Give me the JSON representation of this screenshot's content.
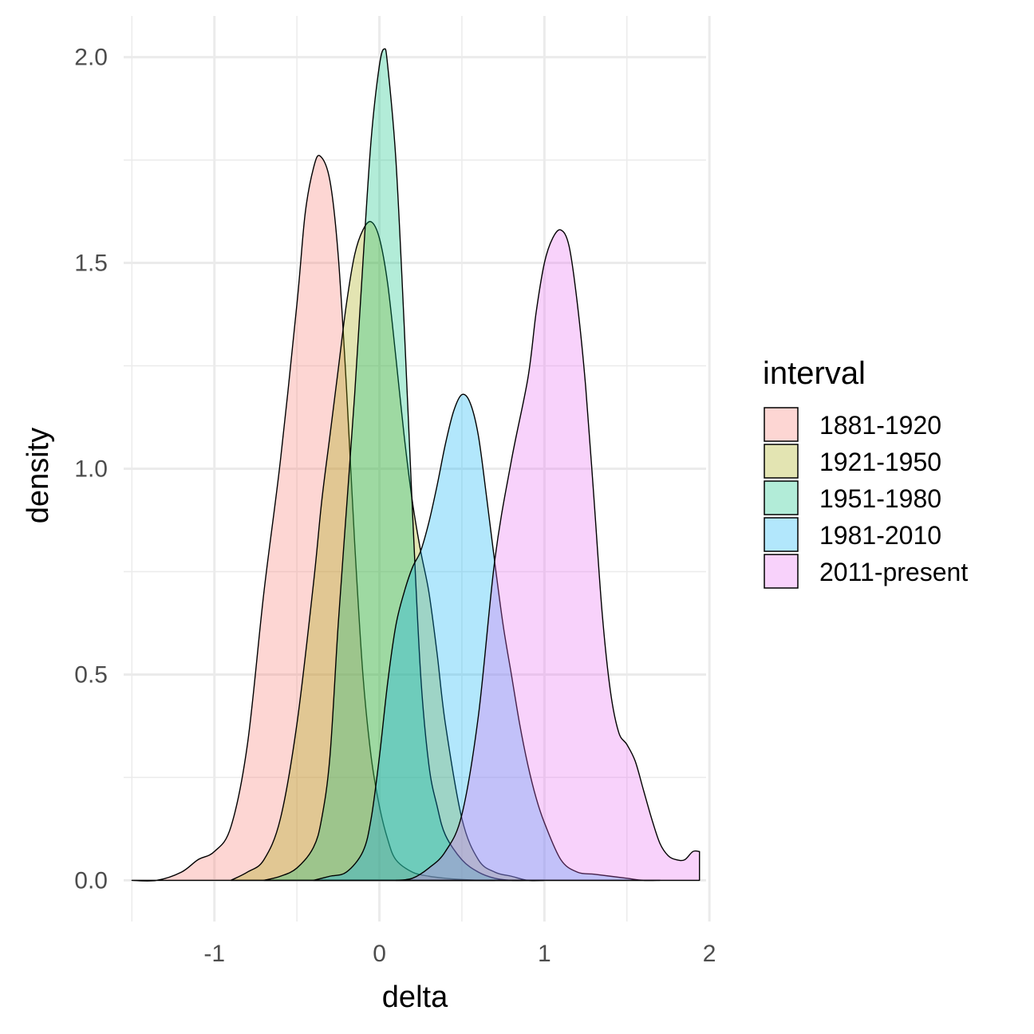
{
  "chart_data": {
    "type": "area",
    "title": "",
    "xlabel": "delta",
    "ylabel": "density",
    "xlim": [
      -1.55,
      1.98
    ],
    "ylim": [
      -0.1,
      2.1
    ],
    "x_ticks": [
      -1,
      0,
      1,
      2
    ],
    "x_tick_labels": [
      "-1",
      "0",
      "1",
      "2"
    ],
    "y_ticks": [
      0.0,
      0.5,
      1.0,
      1.5,
      2.0
    ],
    "y_tick_labels": [
      "0.0",
      "0.5",
      "1.0",
      "1.5",
      "2.0"
    ],
    "grid": true,
    "legend": {
      "title": "interval",
      "position": "right"
    },
    "series": [
      {
        "name": "1881-1920",
        "color": "#F8766D",
        "x": [
          -1.5,
          -1.35,
          -1.2,
          -1.1,
          -1.0,
          -0.9,
          -0.8,
          -0.7,
          -0.6,
          -0.5,
          -0.45,
          -0.4,
          -0.36,
          -0.3,
          -0.25,
          -0.2,
          -0.15,
          -0.1,
          -0.05,
          0.0,
          0.05,
          0.1,
          0.2,
          0.3,
          0.4,
          0.5,
          0.6,
          0.7
        ],
        "y": [
          0.0,
          0.0,
          0.02,
          0.05,
          0.07,
          0.13,
          0.33,
          0.7,
          1.02,
          1.4,
          1.62,
          1.73,
          1.76,
          1.7,
          1.52,
          1.2,
          0.82,
          0.5,
          0.3,
          0.18,
          0.1,
          0.05,
          0.02,
          0.01,
          0.005,
          0.002,
          0.0,
          0.0
        ]
      },
      {
        "name": "1921-1950",
        "color": "#A3A500",
        "x": [
          -0.9,
          -0.8,
          -0.7,
          -0.6,
          -0.5,
          -0.4,
          -0.35,
          -0.3,
          -0.25,
          -0.2,
          -0.15,
          -0.1,
          -0.05,
          0.0,
          0.05,
          0.1,
          0.15,
          0.2,
          0.25,
          0.3,
          0.35,
          0.4,
          0.5,
          0.6,
          0.7,
          0.8,
          0.9,
          1.0
        ],
        "y": [
          0.0,
          0.02,
          0.05,
          0.15,
          0.38,
          0.72,
          0.92,
          1.08,
          1.24,
          1.4,
          1.52,
          1.58,
          1.6,
          1.56,
          1.45,
          1.27,
          1.08,
          0.92,
          0.8,
          0.7,
          0.55,
          0.38,
          0.15,
          0.05,
          0.02,
          0.01,
          0.0,
          0.0
        ]
      },
      {
        "name": "1951-1980",
        "color": "#00BF7D",
        "x": [
          -0.7,
          -0.6,
          -0.5,
          -0.4,
          -0.35,
          -0.3,
          -0.25,
          -0.2,
          -0.15,
          -0.1,
          -0.05,
          0.0,
          0.03,
          0.05,
          0.1,
          0.15,
          0.2,
          0.25,
          0.3,
          0.35,
          0.4,
          0.5,
          0.6,
          0.7,
          0.8,
          0.9
        ],
        "y": [
          0.0,
          0.01,
          0.03,
          0.08,
          0.15,
          0.3,
          0.62,
          0.9,
          1.18,
          1.5,
          1.8,
          1.98,
          2.02,
          1.98,
          1.75,
          1.35,
          0.9,
          0.5,
          0.28,
          0.18,
          0.11,
          0.05,
          0.02,
          0.005,
          0.0,
          0.0
        ]
      },
      {
        "name": "1981-2010",
        "color": "#00B0F6",
        "x": [
          -0.4,
          -0.3,
          -0.2,
          -0.1,
          -0.05,
          0.0,
          0.05,
          0.1,
          0.15,
          0.2,
          0.25,
          0.3,
          0.35,
          0.4,
          0.45,
          0.5,
          0.55,
          0.6,
          0.65,
          0.7,
          0.75,
          0.8,
          0.85,
          0.9,
          0.95,
          1.0,
          1.1,
          1.2,
          1.3,
          1.4,
          1.5,
          1.6,
          1.7
        ],
        "y": [
          0.0,
          0.01,
          0.02,
          0.07,
          0.15,
          0.3,
          0.48,
          0.62,
          0.7,
          0.76,
          0.8,
          0.87,
          0.96,
          1.06,
          1.14,
          1.18,
          1.16,
          1.08,
          0.93,
          0.77,
          0.62,
          0.5,
          0.38,
          0.28,
          0.2,
          0.14,
          0.05,
          0.02,
          0.015,
          0.01,
          0.005,
          0.0,
          0.0
        ]
      },
      {
        "name": "2011-present",
        "color": "#E76BF3",
        "x": [
          0.1,
          0.2,
          0.3,
          0.4,
          0.5,
          0.6,
          0.7,
          0.8,
          0.9,
          0.95,
          1.0,
          1.05,
          1.1,
          1.15,
          1.2,
          1.25,
          1.3,
          1.35,
          1.4,
          1.45,
          1.5,
          1.55,
          1.6,
          1.65,
          1.7,
          1.75,
          1.8,
          1.85,
          1.9,
          1.94
        ],
        "y": [
          0.0,
          0.005,
          0.03,
          0.07,
          0.16,
          0.4,
          0.78,
          1.02,
          1.22,
          1.38,
          1.5,
          1.56,
          1.58,
          1.54,
          1.4,
          1.2,
          0.93,
          0.65,
          0.46,
          0.36,
          0.33,
          0.29,
          0.22,
          0.15,
          0.09,
          0.06,
          0.05,
          0.05,
          0.07,
          0.07
        ]
      }
    ]
  }
}
